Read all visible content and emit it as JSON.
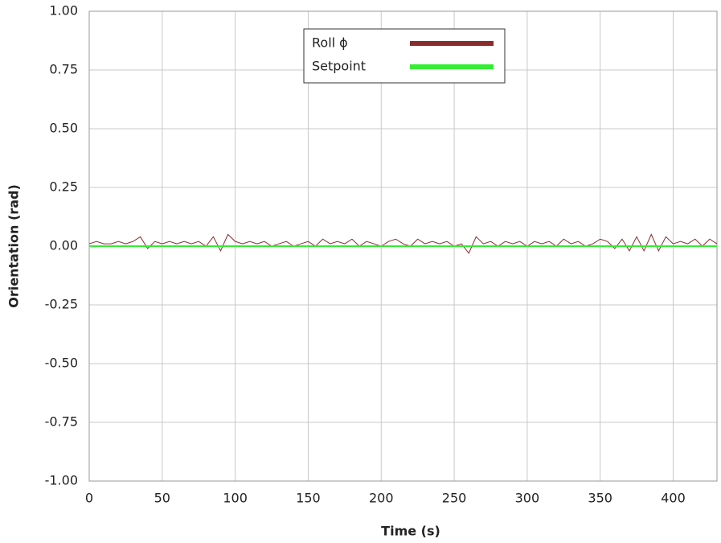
{
  "chart_data": {
    "type": "line",
    "x_label": "Time (s)",
    "y_label": "Orientation (rad)",
    "xlim": [
      0,
      430
    ],
    "ylim": [
      -1,
      1
    ],
    "xticks": [
      0,
      50,
      100,
      150,
      200,
      250,
      300,
      350,
      400
    ],
    "yticks": [
      {
        "value": 1,
        "label": "1.00"
      },
      {
        "value": 0.75,
        "label": "0.75"
      },
      {
        "value": 0.5,
        "label": "0.50"
      },
      {
        "value": 0.25,
        "label": "0.25"
      },
      {
        "value": 0,
        "label": "0.00"
      },
      {
        "value": -0.25,
        "label": "-0.25"
      },
      {
        "value": -0.5,
        "label": "-0.50"
      },
      {
        "value": -0.75,
        "label": "-0.75"
      },
      {
        "value": -1,
        "label": "-1.00"
      }
    ],
    "grid": true,
    "legend": "top",
    "series": [
      {
        "name": "Roll ϕ",
        "color": "#8b2c2c",
        "x": [
          0,
          5,
          10,
          15,
          20,
          25,
          30,
          35,
          40,
          45,
          50,
          55,
          60,
          65,
          70,
          75,
          80,
          85,
          90,
          95,
          100,
          105,
          110,
          115,
          120,
          125,
          130,
          135,
          140,
          145,
          150,
          155,
          160,
          165,
          170,
          175,
          180,
          185,
          190,
          195,
          200,
          205,
          210,
          215,
          220,
          225,
          230,
          235,
          240,
          245,
          250,
          255,
          260,
          265,
          270,
          275,
          280,
          285,
          290,
          295,
          300,
          305,
          310,
          315,
          320,
          325,
          330,
          335,
          340,
          345,
          350,
          355,
          360,
          365,
          370,
          375,
          380,
          385,
          390,
          395,
          400,
          405,
          410,
          415,
          420,
          425,
          430
        ],
        "values": [
          0.01,
          0.02,
          0.01,
          0.01,
          0.02,
          0.01,
          0.02,
          0.04,
          -0.01,
          0.02,
          0.01,
          0.02,
          0.01,
          0.02,
          0.01,
          0.02,
          0.0,
          0.04,
          -0.02,
          0.05,
          0.02,
          0.01,
          0.02,
          0.01,
          0.02,
          0.0,
          0.01,
          0.02,
          0.0,
          0.01,
          0.02,
          0.0,
          0.03,
          0.01,
          0.02,
          0.01,
          0.03,
          0.0,
          0.02,
          0.01,
          0.0,
          0.02,
          0.03,
          0.01,
          0.0,
          0.03,
          0.01,
          0.02,
          0.01,
          0.02,
          0.0,
          0.01,
          -0.03,
          0.04,
          0.01,
          0.02,
          0.0,
          0.02,
          0.01,
          0.02,
          0.0,
          0.02,
          0.01,
          0.02,
          0.0,
          0.03,
          0.01,
          0.02,
          0.0,
          0.01,
          0.03,
          0.02,
          -0.01,
          0.03,
          -0.02,
          0.04,
          -0.02,
          0.05,
          -0.02,
          0.04,
          0.01,
          0.02,
          0.01,
          0.03,
          0.0,
          0.03,
          0.01
        ]
      },
      {
        "name": "Setpoint",
        "color": "#33ee33",
        "x": [
          0,
          430
        ],
        "values": [
          0,
          0
        ]
      }
    ]
  }
}
